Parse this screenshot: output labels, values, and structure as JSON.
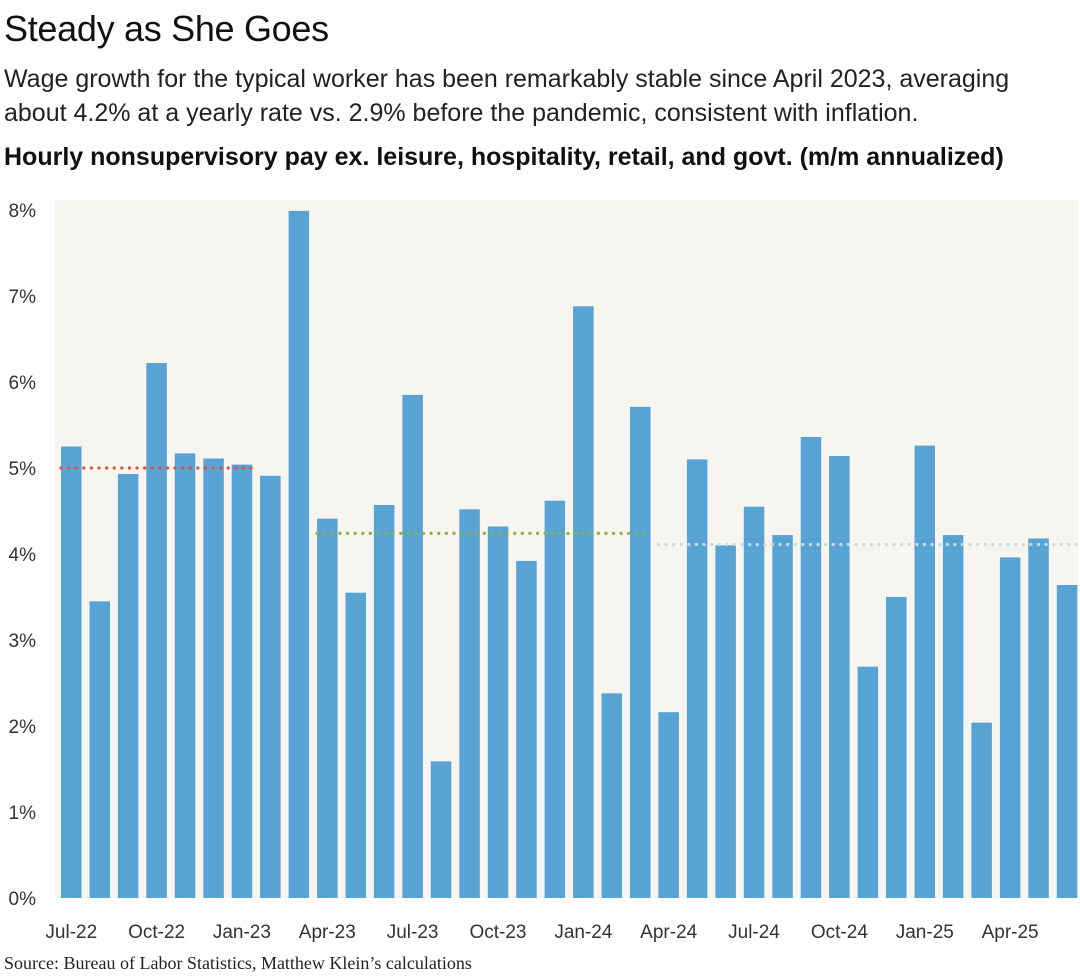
{
  "title": "Steady as She Goes",
  "subtitle": "Wage growth for the typical worker has been remarkably stable since April 2023, averaging about 4.2% at a yearly rate vs. 2.9% before the pandemic, consistent with inflation.",
  "chart_heading": "Hourly nonsupervisory pay ex. leisure, hospitality, retail, and govt. (m/m annualized)",
  "source": "Source: Bureau of Labor Statistics, Matthew Klein’s calculations",
  "colors": {
    "bar": "#56a3d4",
    "plot_background": "#f7f5f0",
    "avg_line_1": "#e8503c",
    "avg_line_2": "#8db04e",
    "avg_line_3": "#c7dbe6"
  },
  "chart_data": {
    "type": "bar",
    "categories": [
      "Jul-22",
      "Aug-22",
      "Sep-22",
      "Oct-22",
      "Nov-22",
      "Dec-22",
      "Jan-23",
      "Feb-23",
      "Mar-23",
      "Apr-23",
      "May-23",
      "Jun-23",
      "Jul-23",
      "Aug-23",
      "Sep-23",
      "Oct-23",
      "Nov-23",
      "Dec-23",
      "Jan-24",
      "Feb-24",
      "Mar-24",
      "Apr-24",
      "May-24",
      "Jun-24",
      "Jul-24",
      "Aug-24",
      "Sep-24",
      "Oct-24",
      "Nov-24",
      "Dec-24",
      "Jan-25",
      "Feb-25",
      "Mar-25",
      "Apr-25",
      "May-25",
      "Jun-25"
    ],
    "values": [
      5.25,
      3.45,
      4.93,
      6.22,
      5.17,
      5.11,
      5.04,
      4.91,
      7.99,
      4.41,
      3.55,
      4.57,
      5.85,
      1.59,
      4.52,
      4.32,
      3.92,
      4.62,
      6.88,
      2.38,
      5.71,
      2.16,
      5.1,
      4.1,
      4.55,
      4.22,
      5.36,
      5.14,
      2.69,
      3.5,
      5.26,
      4.22,
      2.04,
      3.96,
      4.18,
      3.64
    ],
    "x_tick_labels": [
      "Jul-22",
      "Oct-22",
      "Jan-23",
      "Apr-23",
      "Jul-23",
      "Oct-23",
      "Jan-24",
      "Apr-24",
      "Jul-24",
      "Oct-24",
      "Jan-25",
      "Apr-25"
    ],
    "y_tick_labels": [
      "0%",
      "1%",
      "2%",
      "3%",
      "4%",
      "5%",
      "6%",
      "7%",
      "8%"
    ],
    "ylim": [
      0,
      8
    ],
    "averages": [
      {
        "start": "Jul-22",
        "end": "Jan-23",
        "value": 5.0,
        "color": "#e8503c"
      },
      {
        "start": "Apr-23",
        "end": "Mar-24",
        "value": 4.24,
        "color": "#8db04e"
      },
      {
        "start": "Apr-24",
        "end": "Jun-25",
        "value": 4.11,
        "color": "#c7dbe6"
      }
    ],
    "grid": false,
    "xlabel": "",
    "ylabel": ""
  }
}
